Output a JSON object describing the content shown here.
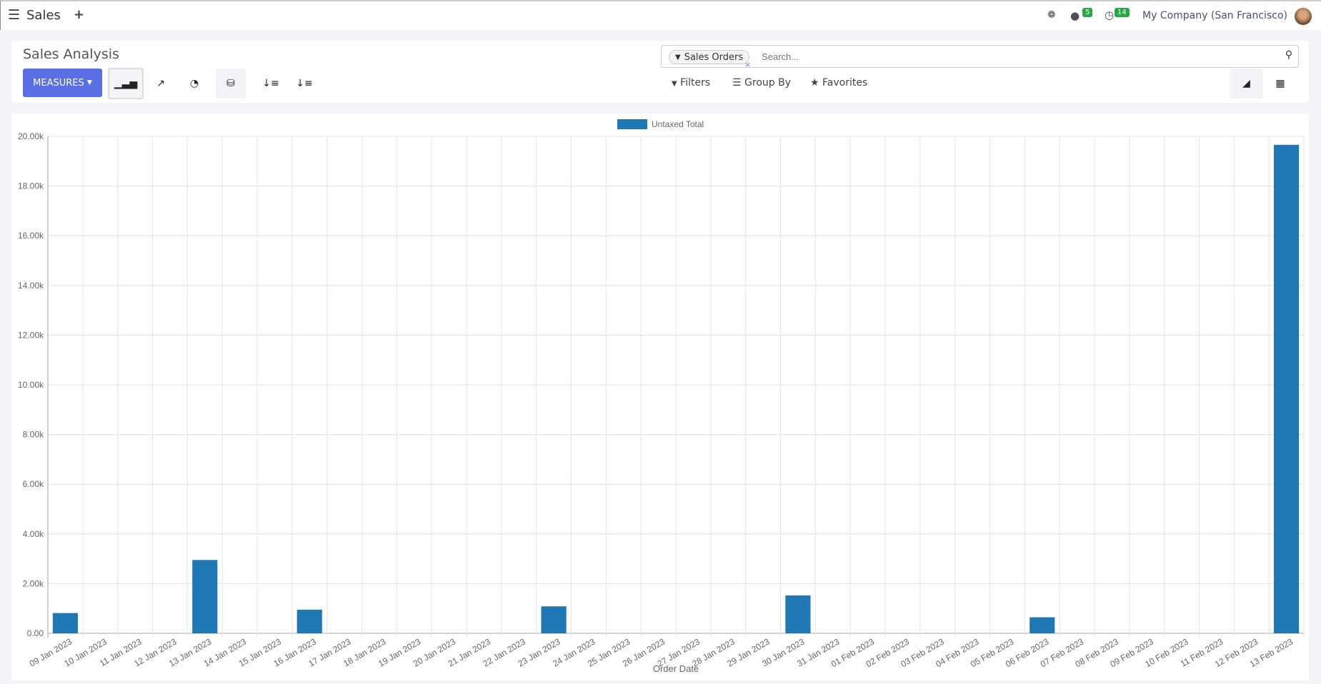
{
  "topbar": {
    "app_name": "Sales",
    "company": "My Company (San Francisco)",
    "messages_count": "5",
    "activities_count": "14"
  },
  "control_panel": {
    "title": "Sales Analysis",
    "measures_label": "MEASURES",
    "search_facet": "Sales Orders",
    "search_placeholder": "Search...",
    "filters_label": "Filters",
    "groupby_label": "Group By",
    "favorites_label": "Favorites"
  },
  "colors": {
    "accent": "#5a6fe3",
    "bar": "#1f77b4",
    "badge": "#28a745"
  },
  "chart_data": {
    "type": "bar",
    "xlabel": "Order Date",
    "ylabel": "",
    "title": "",
    "legend_position": "top",
    "grid": true,
    "ylim": [
      0,
      20000
    ],
    "yticks": [
      "0.00",
      "2.00k",
      "4.00k",
      "6.00k",
      "8.00k",
      "10.00k",
      "12.00k",
      "14.00k",
      "16.00k",
      "18.00k",
      "20.00k"
    ],
    "categories": [
      "09 Jan 2023",
      "10 Jan 2023",
      "11 Jan 2023",
      "12 Jan 2023",
      "13 Jan 2023",
      "14 Jan 2023",
      "15 Jan 2023",
      "16 Jan 2023",
      "17 Jan 2023",
      "18 Jan 2023",
      "19 Jan 2023",
      "20 Jan 2023",
      "21 Jan 2023",
      "22 Jan 2023",
      "23 Jan 2023",
      "24 Jan 2023",
      "25 Jan 2023",
      "26 Jan 2023",
      "27 Jan 2023",
      "28 Jan 2023",
      "29 Jan 2023",
      "30 Jan 2023",
      "31 Jan 2023",
      "01 Feb 2023",
      "02 Feb 2023",
      "03 Feb 2023",
      "04 Feb 2023",
      "05 Feb 2023",
      "06 Feb 2023",
      "07 Feb 2023",
      "08 Feb 2023",
      "09 Feb 2023",
      "10 Feb 2023",
      "11 Feb 2023",
      "12 Feb 2023",
      "13 Feb 2023"
    ],
    "series": [
      {
        "name": "Untaxed Total",
        "values": [
          815,
          0,
          0,
          0,
          2950,
          0,
          0,
          950,
          0,
          0,
          0,
          0,
          0,
          0,
          1085,
          0,
          0,
          0,
          0,
          0,
          0,
          1525,
          0,
          0,
          0,
          0,
          0,
          0,
          645,
          0,
          0,
          0,
          0,
          0,
          0,
          19660
        ]
      }
    ]
  }
}
